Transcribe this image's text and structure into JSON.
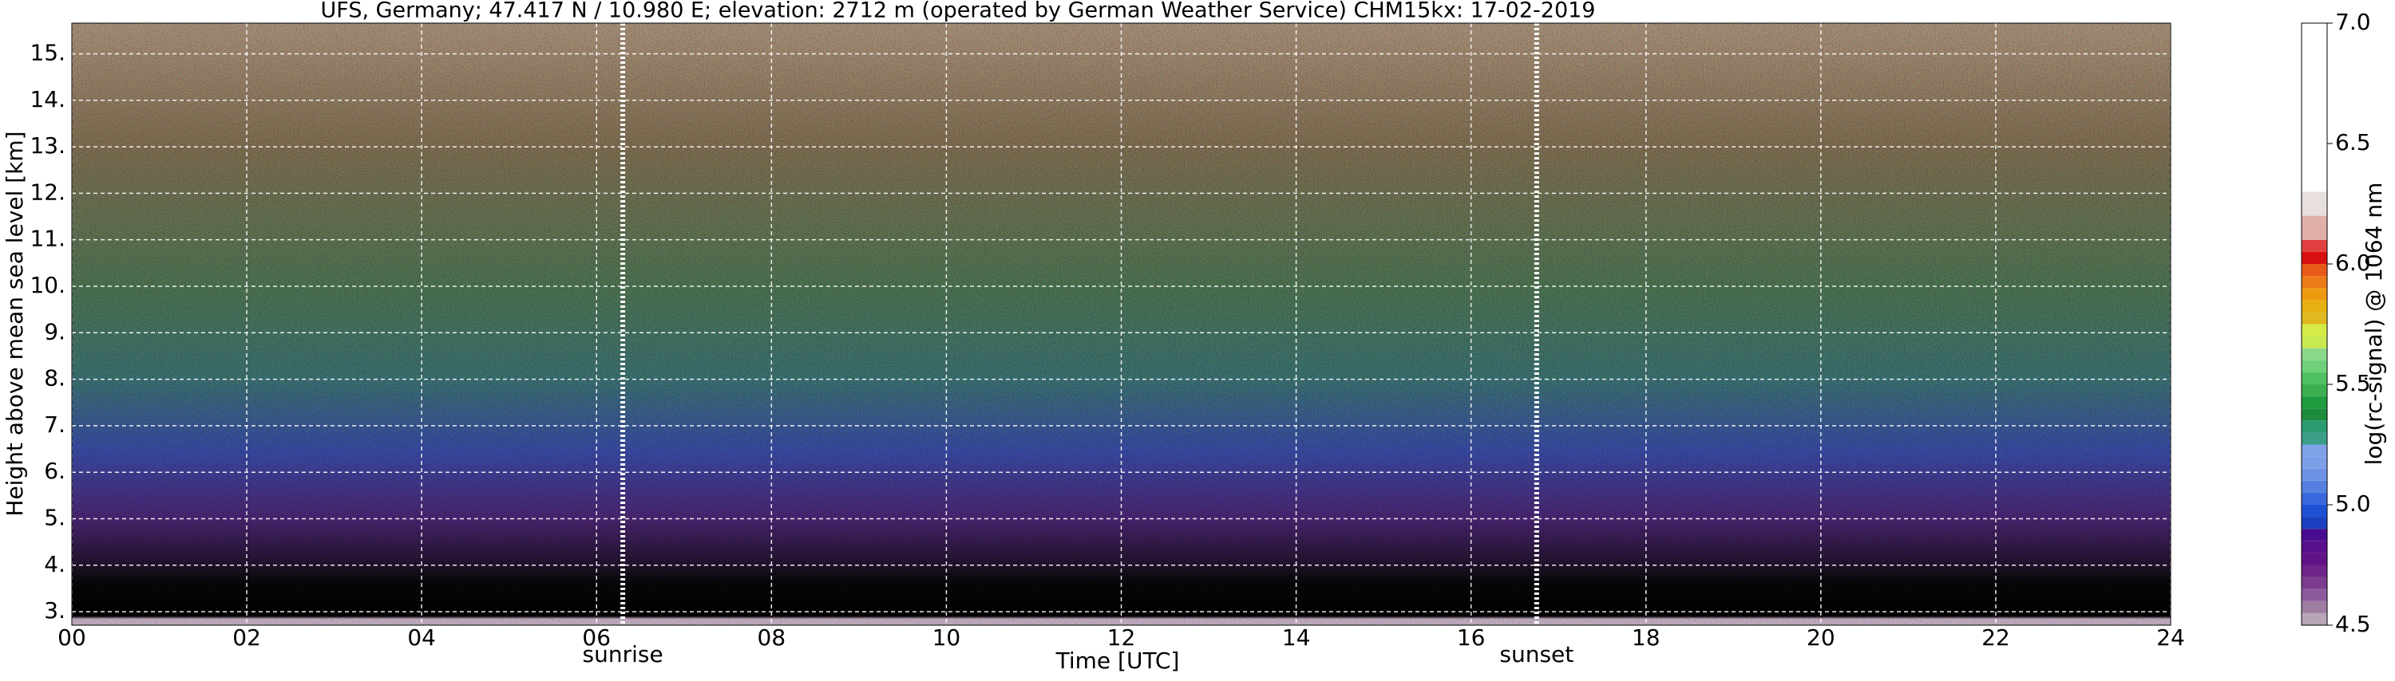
{
  "chart_data": {
    "type": "ceilometer",
    "title": "UFS, Germany; 47.417 N / 10.980 E; elevation: 2712 m  (operated by German Weather Service)     CHM15kx: 17-02-2019",
    "x_label": "Time [UTC]",
    "y_label": "Height above mean sea level [km]",
    "xlim": [
      0,
      24
    ],
    "xticks": [
      {
        "value": 0,
        "label": "00"
      },
      {
        "value": 2,
        "label": "02"
      },
      {
        "value": 4,
        "label": "04"
      },
      {
        "value": 6,
        "label": "06"
      },
      {
        "value": 8,
        "label": "08"
      },
      10,
      12,
      14,
      16,
      18,
      20,
      22,
      24
    ],
    "ylim": [
      2.71,
      15.66
    ],
    "yticks": [
      {
        "value": 3,
        "label": "3."
      },
      {
        "value": 4,
        "label": "4."
      },
      {
        "value": 5,
        "label": "5."
      },
      {
        "value": 6,
        "label": "6."
      },
      {
        "value": 7,
        "label": "7."
      },
      {
        "value": 8,
        "label": "8."
      },
      {
        "value": 9,
        "label": "9."
      },
      {
        "value": 10,
        "label": "10."
      },
      {
        "value": 11,
        "label": "11."
      },
      {
        "value": 12,
        "label": "12."
      },
      {
        "value": 13,
        "label": "13."
      },
      {
        "value": 14,
        "label": "14."
      },
      {
        "value": 15,
        "label": "15."
      }
    ],
    "grid": true,
    "annotations": [
      {
        "label": "sunrise",
        "x": 6.3
      },
      {
        "label": "sunset",
        "x": 16.75
      }
    ],
    "colorbar": {
      "label": "log(rc-signal) @ 1064 nm",
      "lim": [
        4.5,
        7.0
      ],
      "ticks": [
        4.5,
        {
          "value": 5,
          "label": "5.0"
        },
        5.5,
        {
          "value": 6,
          "label": "6.0"
        },
        6.5,
        {
          "value": 7,
          "label": "7.0"
        }
      ],
      "levels": [
        4.5,
        4.55,
        4.6,
        4.65,
        4.7,
        4.75,
        4.8,
        4.85,
        4.9,
        4.95,
        5.0,
        5.05,
        5.1,
        5.15,
        5.2,
        5.25,
        5.3,
        5.35,
        5.4,
        5.45,
        5.5,
        5.55,
        5.6,
        5.65,
        5.7,
        5.75,
        5.8,
        5.85,
        5.9,
        5.95,
        6.0,
        6.05,
        6.1,
        6.2,
        6.3,
        7.0
      ],
      "colors": [
        "#b8a5b5",
        "#9d7ea3",
        "#8d5a9c",
        "#7b3c90",
        "#6e2488",
        "#62138a",
        "#5a0f8c",
        "#4a0c90",
        "#1a3fc0",
        "#1e50d4",
        "#3a68dc",
        "#5580e0",
        "#6d92e4",
        "#7c9fe8",
        "#7fa2e8",
        "#3a9e88",
        "#2a9a70",
        "#1c8c3c",
        "#1f9a3e",
        "#3cb050",
        "#4fc060",
        "#6fd07a",
        "#8ad88a",
        "#c8e850",
        "#d6ec46",
        "#e0b820",
        "#e6b010",
        "#ee9a10",
        "#ec7a18",
        "#e85a18",
        "#d81010",
        "#e04040",
        "#e0b0a8",
        "#e8e0dc",
        "#ffffff"
      ]
    }
  }
}
